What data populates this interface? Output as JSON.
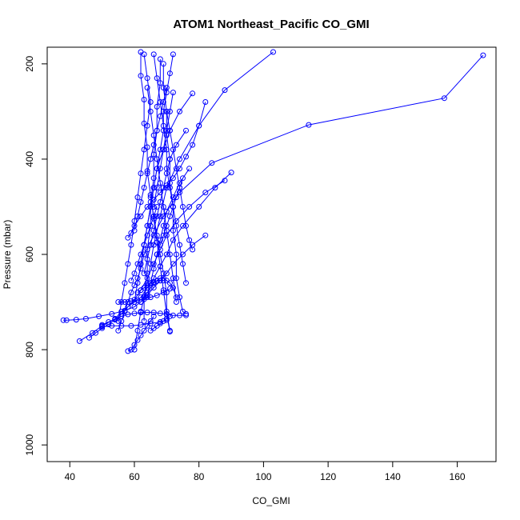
{
  "chart_data": {
    "type": "line",
    "title": "ATOM1 Northeast_Pacific CO_GMI",
    "xlabel": "CO_GMI",
    "ylabel": "Pressure (mbar)",
    "xlim": [
      33,
      172
    ],
    "ylim": [
      1035,
      165
    ],
    "y_reversed": true,
    "xticks": [
      40,
      60,
      80,
      100,
      120,
      140,
      160
    ],
    "yticks": [
      200,
      400,
      600,
      800,
      1000
    ],
    "marker": "open-circle",
    "color": "#0000ff",
    "grid": false,
    "series": [
      {
        "x": [
          168,
          156,
          114,
          84,
          74,
          69,
          66,
          63,
          62,
          61,
          60,
          59,
          58,
          57,
          56,
          55
        ],
        "y": [
          182,
          272,
          328,
          408,
          470,
          520,
          560,
          600,
          630,
          650,
          665,
          680,
          700,
          720,
          740,
          760
        ]
      },
      {
        "x": [
          103,
          88,
          80,
          74,
          70,
          68,
          66,
          65,
          64,
          63,
          62,
          61,
          60
        ],
        "y": [
          175,
          255,
          330,
          400,
          460,
          520,
          580,
          620,
          660,
          690,
          720,
          760,
          800
        ]
      },
      {
        "x": [
          90,
          85,
          80,
          75,
          72,
          70,
          68,
          66,
          64,
          62,
          60,
          58,
          56,
          54,
          50,
          47,
          43
        ],
        "y": [
          428,
          460,
          500,
          540,
          570,
          600,
          625,
          650,
          670,
          690,
          700,
          710,
          720,
          735,
          750,
          765,
          782
        ]
      },
      {
        "x": [
          82,
          78,
          75,
          72,
          70,
          68,
          66,
          64,
          62,
          60,
          57,
          53,
          49,
          45,
          42,
          39,
          38
        ],
        "y": [
          560,
          580,
          600,
          620,
          640,
          655,
          670,
          685,
          700,
          710,
          718,
          725,
          730,
          735,
          737,
          738,
          738
        ]
      },
      {
        "x": [
          78,
          74,
          71,
          69,
          67,
          66,
          65,
          64,
          63,
          62,
          61,
          60
        ],
        "y": [
          262,
          300,
          340,
          380,
          420,
          460,
          500,
          540,
          580,
          620,
          660,
          700
        ]
      },
      {
        "x": [
          76,
          73,
          71,
          70,
          69,
          68,
          67,
          66,
          65,
          64,
          63
        ],
        "y": [
          340,
          370,
          400,
          430,
          460,
          490,
          520,
          550,
          580,
          610,
          640
        ]
      },
      {
        "x": [
          72,
          71,
          70,
          69,
          69,
          68,
          67,
          66,
          65,
          64,
          63,
          62
        ],
        "y": [
          180,
          220,
          260,
          300,
          340,
          380,
          420,
          460,
          500,
          540,
          580,
          620
        ]
      },
      {
        "x": [
          66,
          67,
          68,
          69,
          70,
          70,
          71,
          72,
          73,
          74,
          75,
          76
        ],
        "y": [
          180,
          230,
          280,
          330,
          380,
          420,
          460,
          500,
          540,
          580,
          620,
          660
        ]
      },
      {
        "x": [
          63,
          64,
          65,
          64,
          63,
          62,
          61,
          60,
          59,
          58,
          57,
          56,
          55
        ],
        "y": [
          180,
          230,
          280,
          330,
          380,
          430,
          480,
          530,
          580,
          620,
          660,
          700,
          740
        ]
      },
      {
        "x": [
          62,
          62,
          63,
          63,
          64,
          64,
          65,
          66,
          67,
          68,
          69,
          70,
          71
        ],
        "y": [
          175,
          225,
          275,
          325,
          375,
          425,
          475,
          525,
          575,
          625,
          675,
          725,
          762
        ]
      },
      {
        "x": [
          68,
          68,
          67,
          67,
          66,
          66,
          65,
          65,
          64,
          64,
          63,
          63
        ],
        "y": [
          190,
          240,
          290,
          340,
          390,
          440,
          490,
          540,
          590,
          640,
          690,
          740
        ]
      },
      {
        "x": [
          70,
          71,
          72,
          73,
          74,
          75,
          76,
          77,
          78
        ],
        "y": [
          300,
          340,
          380,
          420,
          460,
          500,
          540,
          570,
          590
        ]
      },
      {
        "x": [
          88,
          82,
          77,
          73,
          70,
          68,
          66,
          64,
          62,
          60,
          58,
          56,
          54,
          52,
          50,
          48,
          46
        ],
        "y": [
          445,
          470,
          500,
          530,
          560,
          590,
          620,
          650,
          675,
          695,
          710,
          725,
          737,
          747,
          755,
          765,
          775
        ]
      },
      {
        "x": [
          77,
          74,
          72,
          70,
          69,
          68,
          67,
          66,
          65,
          64
        ],
        "y": [
          420,
          450,
          480,
          510,
          540,
          570,
          600,
          630,
          660,
          690
        ]
      },
      {
        "x": [
          69,
          69,
          70,
          70,
          71,
          71,
          72,
          72,
          73,
          73,
          74,
          75,
          76
        ],
        "y": [
          200,
          250,
          300,
          350,
          400,
          450,
          500,
          550,
          600,
          650,
          690,
          720,
          725
        ]
      },
      {
        "x": [
          64,
          65,
          66,
          67,
          68,
          69,
          70,
          71,
          72,
          73
        ],
        "y": [
          250,
          300,
          350,
          400,
          450,
          500,
          550,
          600,
          650,
          700
        ]
      },
      {
        "x": [
          60,
          61,
          62,
          63,
          64,
          65,
          66,
          67,
          68,
          69,
          70
        ],
        "y": [
          550,
          520,
          490,
          460,
          430,
          400,
          370,
          340,
          310,
          280,
          250
        ]
      },
      {
        "x": [
          58,
          59,
          60,
          62,
          64,
          66,
          68,
          70,
          72,
          74,
          76,
          78,
          80,
          82
        ],
        "y": [
          565,
          555,
          540,
          520,
          500,
          485,
          470,
          455,
          440,
          420,
          395,
          370,
          330,
          280
        ]
      },
      {
        "x": [
          62,
          63,
          64,
          65,
          66,
          67,
          68,
          69,
          70,
          71,
          72,
          73
        ],
        "y": [
          700,
          690,
          680,
          670,
          660,
          655,
          650,
          650,
          655,
          660,
          670,
          690
        ]
      },
      {
        "x": [
          50,
          52,
          54,
          56,
          58,
          60,
          62,
          64,
          66,
          68,
          70,
          72,
          74,
          76
        ],
        "y": [
          748,
          742,
          736,
          730,
          726,
          724,
          722,
          722,
          722,
          724,
          726,
          728,
          728,
          728
        ]
      },
      {
        "x": [
          50,
          53,
          56,
          59,
          62,
          65,
          68,
          70
        ],
        "y": [
          752,
          750,
          750,
          750,
          748,
          745,
          742,
          738
        ]
      },
      {
        "x": [
          55,
          57,
          59,
          61,
          63,
          65,
          67,
          69,
          71
        ],
        "y": [
          700,
          700,
          698,
          696,
          694,
          690,
          686,
          680,
          672
        ]
      },
      {
        "x": [
          58,
          59,
          60,
          61,
          62,
          63,
          64,
          65,
          66
        ],
        "y": [
          803,
          800,
          790,
          780,
          770,
          760,
          750,
          740,
          730
        ]
      },
      {
        "x": [
          59,
          60,
          61,
          62,
          63,
          64,
          65,
          66,
          67
        ],
        "y": [
          655,
          640,
          620,
          600,
          580,
          560,
          540,
          520,
          500
        ]
      },
      {
        "x": [
          67,
          68,
          69,
          70,
          71,
          72,
          73,
          74,
          75
        ],
        "y": [
          600,
          580,
          560,
          540,
          520,
          500,
          480,
          460,
          440
        ]
      },
      {
        "x": [
          65,
          66,
          67,
          68,
          69,
          70,
          71
        ],
        "y": [
          760,
          755,
          750,
          745,
          740,
          735,
          730
        ]
      },
      {
        "x": [
          61,
          62,
          63,
          64,
          65,
          66,
          67,
          68,
          69
        ],
        "y": [
          680,
          675,
          670,
          665,
          660,
          658,
          656,
          655,
          655
        ]
      },
      {
        "x": [
          72,
          71,
          70,
          69,
          68,
          67,
          66
        ],
        "y": [
          260,
          300,
          340,
          380,
          420,
          460,
          500
        ]
      },
      {
        "x": [
          71,
          70,
          70,
          69,
          68,
          67,
          66,
          65
        ],
        "y": [
          760,
          720,
          680,
          640,
          600,
          560,
          520,
          480
        ]
      }
    ]
  }
}
